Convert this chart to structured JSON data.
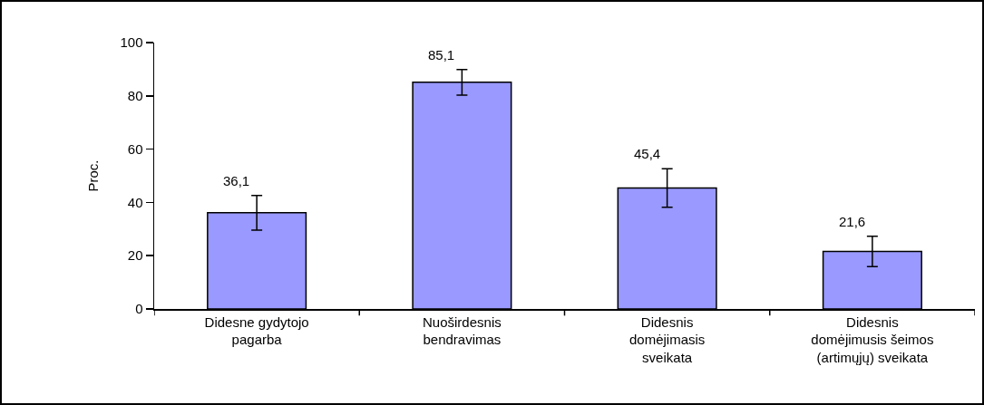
{
  "chart_data": {
    "type": "bar",
    "ylabel": "Proc.",
    "categories": [
      "Didesne gydytojo\npagarba",
      "Nuoširdesnis\nbendravimas",
      "Didesnis\ndomėjimasis\nsveikata",
      "Didesnis\ndomėjimusis šeimos\n(artimųjų) sveikata"
    ],
    "values": [
      36.1,
      85.1,
      45.4,
      21.6
    ],
    "errors": [
      6.5,
      4.8,
      7.2,
      5.7
    ],
    "color": "#9999ff",
    "ylim": [
      0,
      100
    ],
    "yticks": [
      0,
      20,
      40,
      60,
      80,
      100
    ],
    "value_labels": [
      "36,1",
      "85,1",
      "45,4",
      "21,6"
    ],
    "grid": false,
    "legend": false
  }
}
